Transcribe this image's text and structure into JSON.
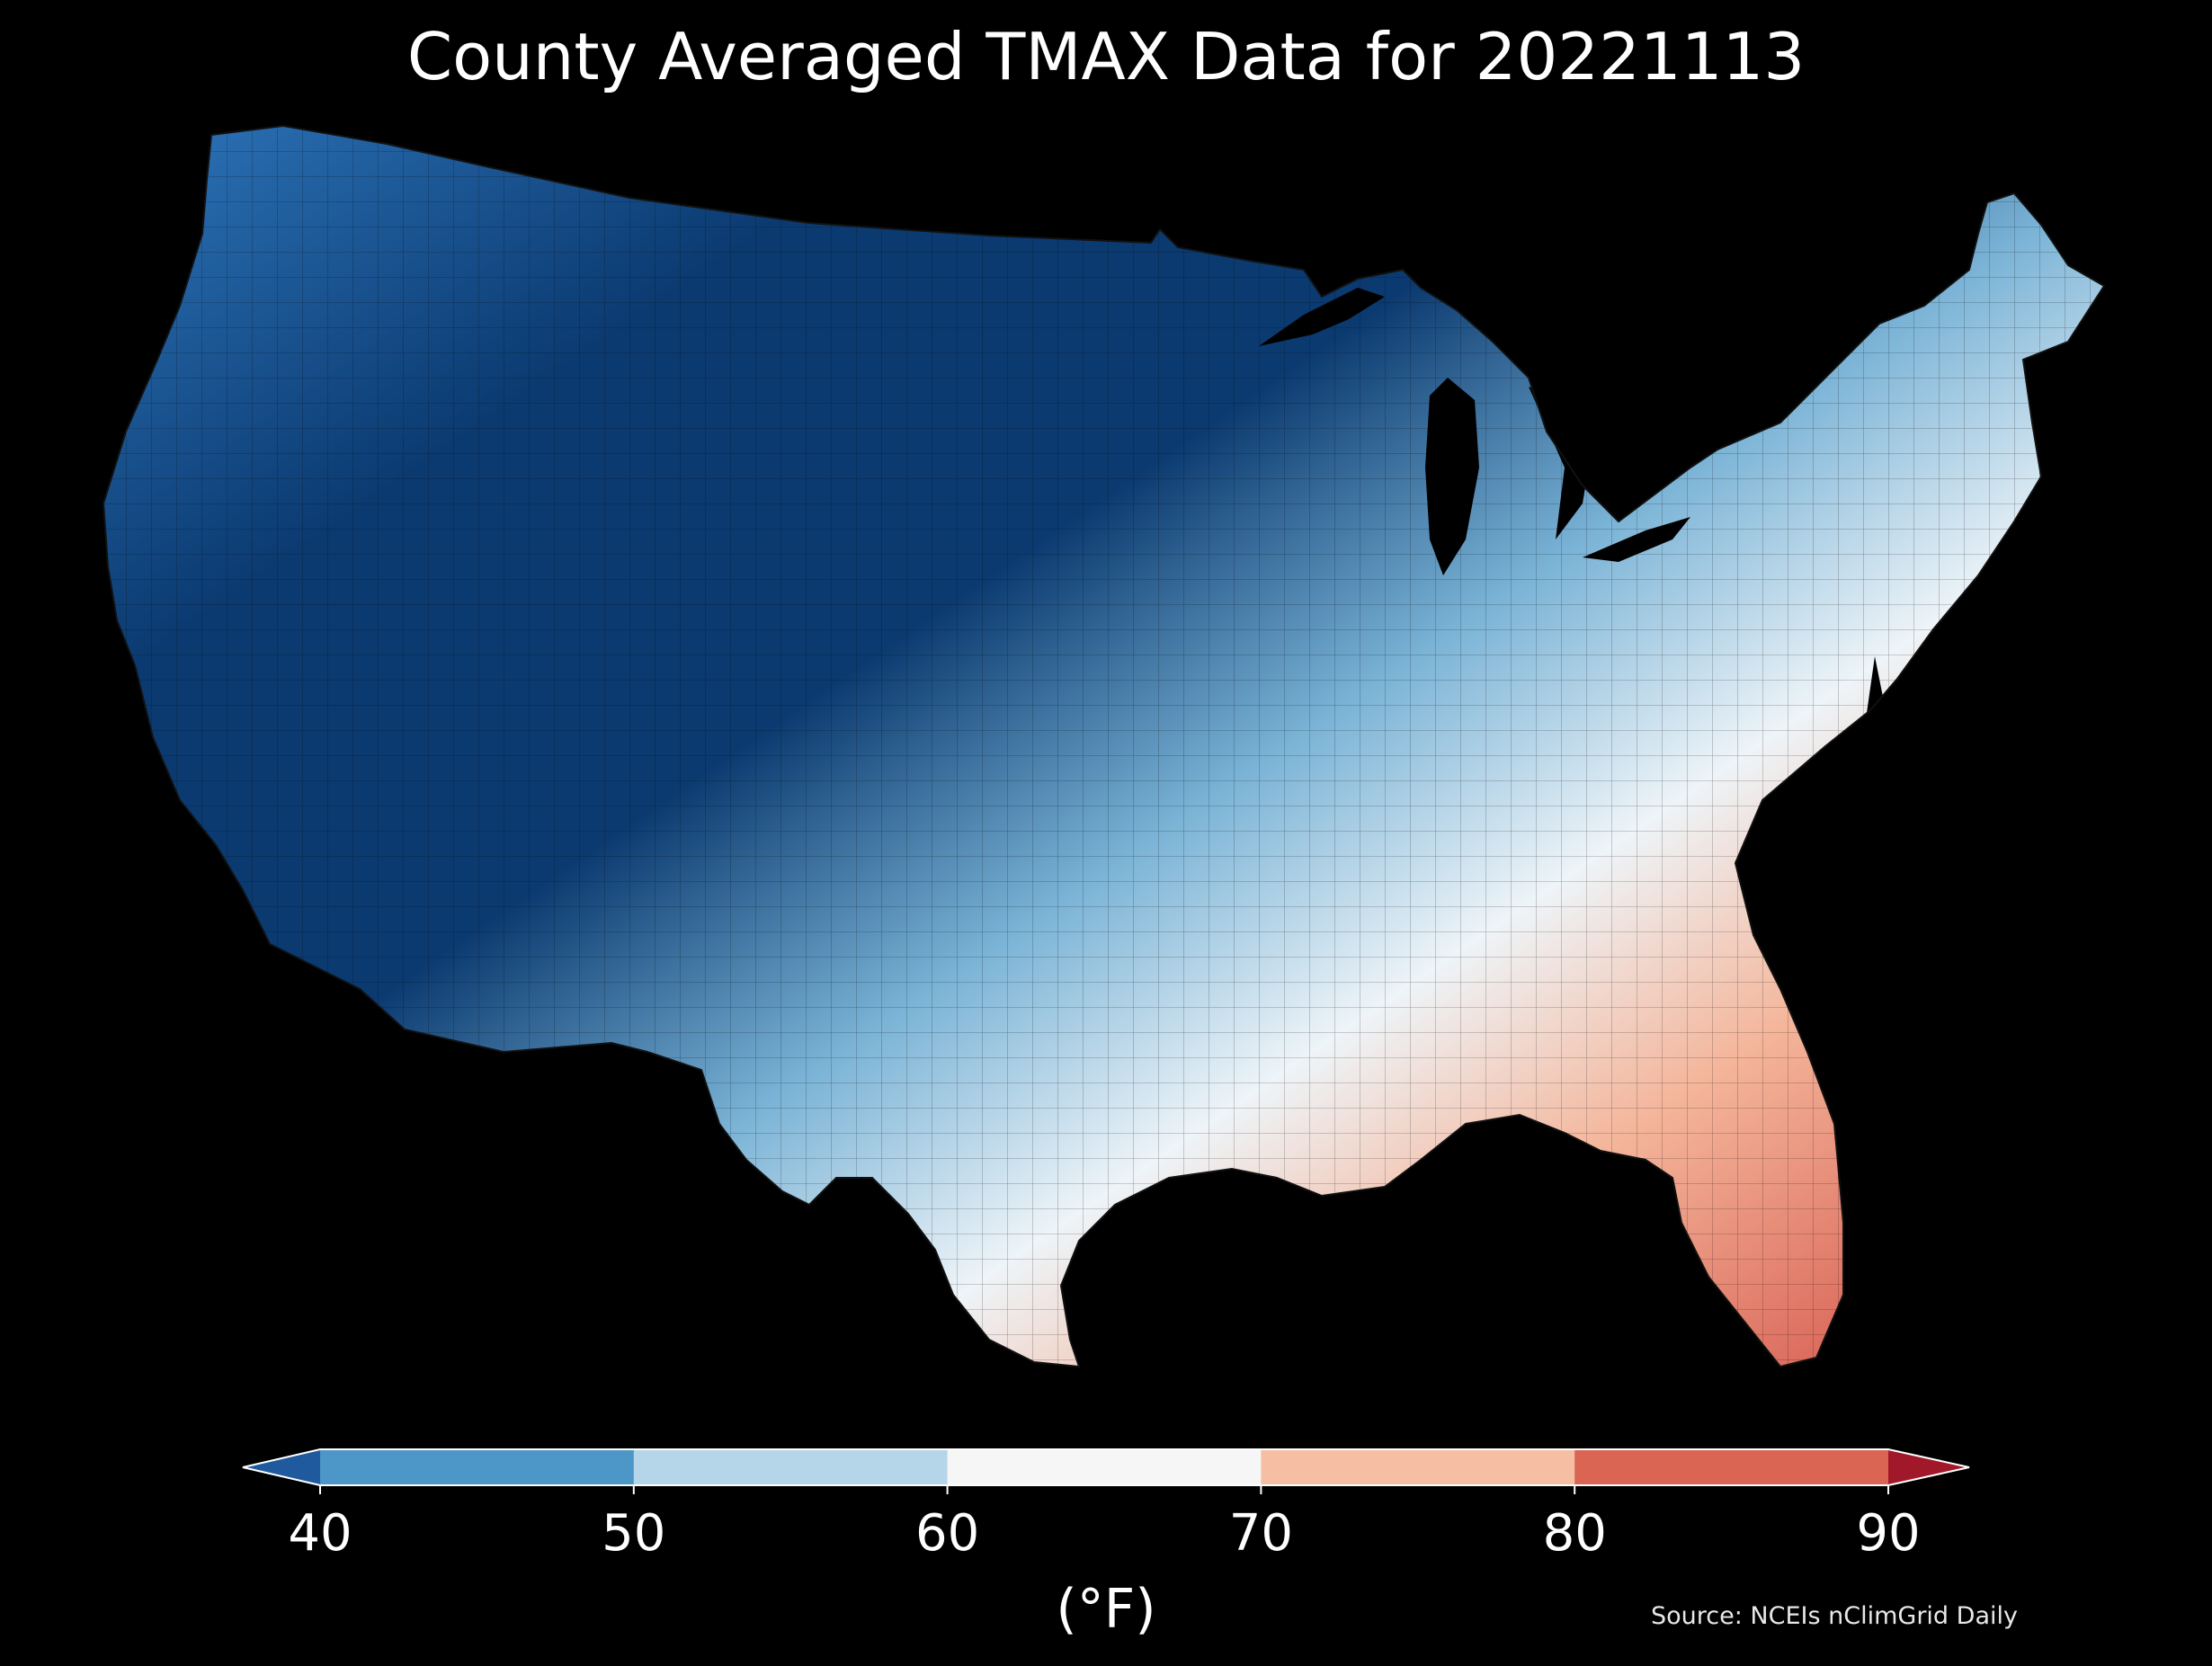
{
  "title": "County Averaged TMAX Data for 20221113",
  "colorbar": {
    "units_label": "(°F)",
    "tick_labels": [
      "40",
      "50",
      "60",
      "70",
      "80",
      "90"
    ],
    "bins": [
      {
        "label": "< 40",
        "color": "#1f5a9e"
      },
      {
        "label": "40–50",
        "color": "#4c97c8"
      },
      {
        "label": "50–60",
        "color": "#b5d6e9"
      },
      {
        "label": "60–70",
        "color": "#f6f6f6"
      },
      {
        "label": "70–80",
        "color": "#f6bfa4"
      },
      {
        "label": "80–90",
        "color": "#d96552"
      },
      {
        "label": "> 90",
        "color": "#a0182a"
      }
    ]
  },
  "source": "Source: NCEIs nClimGrid Daily",
  "map": {
    "region": "contiguous-united-states",
    "background_color": "#000000",
    "gradient_stops": [
      {
        "offset": 0.0,
        "color": "#2a6fb3"
      },
      {
        "offset": 0.2,
        "color": "#0b3a70"
      },
      {
        "offset": 0.4,
        "color": "#0b3a70"
      },
      {
        "offset": 0.55,
        "color": "#7ab3d6"
      },
      {
        "offset": 0.68,
        "color": "#eef4f8"
      },
      {
        "offset": 0.8,
        "color": "#f4b59a"
      },
      {
        "offset": 1.0,
        "color": "#d24e44"
      }
    ]
  }
}
